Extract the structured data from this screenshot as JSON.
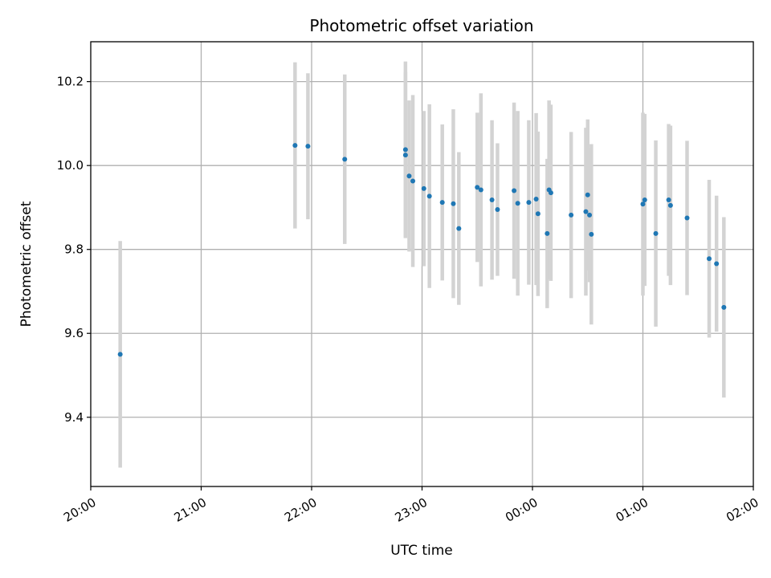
{
  "chart_data": {
    "type": "scatter",
    "title": "Photometric offset variation",
    "xlabel": "UTC time",
    "ylabel": "Photometric offset",
    "xlim": [
      "2000-01-01T20:00",
      "2000-01-02T02:00"
    ],
    "ylim": [
      9.235,
      10.295
    ],
    "x_ticks": [
      {
        "t": "2000-01-01T20:00",
        "label": "20:00"
      },
      {
        "t": "2000-01-01T21:00",
        "label": "21:00"
      },
      {
        "t": "2000-01-01T22:00",
        "label": "22:00"
      },
      {
        "t": "2000-01-01T23:00",
        "label": "23:00"
      },
      {
        "t": "2000-01-02T00:00",
        "label": "00:00"
      },
      {
        "t": "2000-01-02T01:00",
        "label": "01:00"
      },
      {
        "t": "2000-01-02T02:00",
        "label": "02:00"
      }
    ],
    "y_ticks": [
      {
        "value": 9.4,
        "label": "9.4"
      },
      {
        "value": 9.6,
        "label": "9.6"
      },
      {
        "value": 9.8,
        "label": "9.8"
      },
      {
        "value": 10.0,
        "label": "10.0"
      },
      {
        "value": 10.2,
        "label": "10.2"
      }
    ],
    "grid": true,
    "point_color": "#1f77b4",
    "errorbar_color": "#d3d3d3",
    "points": [
      {
        "t": "2000-01-01T20:16",
        "y": 9.55,
        "err": 0.27
      },
      {
        "t": "2000-01-01T21:51",
        "y": 10.048,
        "err": 0.198
      },
      {
        "t": "2000-01-01T21:58",
        "y": 10.046,
        "err": 0.174
      },
      {
        "t": "2000-01-01T22:18",
        "y": 10.015,
        "err": 0.202
      },
      {
        "t": "2000-01-01T22:51",
        "y": 10.038,
        "err": 0.21
      },
      {
        "t": "2000-01-01T22:51",
        "y": 10.025,
        "err": 0.198
      },
      {
        "t": "2000-01-01T22:53",
        "y": 9.975,
        "err": 0.18
      },
      {
        "t": "2000-01-01T22:55",
        "y": 9.963,
        "err": 0.205
      },
      {
        "t": "2000-01-01T23:01",
        "y": 9.945,
        "err": 0.185
      },
      {
        "t": "2000-01-01T23:04",
        "y": 9.927,
        "err": 0.219
      },
      {
        "t": "2000-01-01T23:11",
        "y": 9.912,
        "err": 0.186
      },
      {
        "t": "2000-01-01T23:17",
        "y": 9.909,
        "err": 0.225
      },
      {
        "t": "2000-01-01T23:20",
        "y": 9.85,
        "err": 0.182
      },
      {
        "t": "2000-01-01T23:30",
        "y": 9.948,
        "err": 0.178
      },
      {
        "t": "2000-01-01T23:32",
        "y": 9.942,
        "err": 0.23
      },
      {
        "t": "2000-01-01T23:38",
        "y": 9.918,
        "err": 0.19
      },
      {
        "t": "2000-01-01T23:41",
        "y": 9.895,
        "err": 0.158
      },
      {
        "t": "2000-01-01T23:50",
        "y": 9.94,
        "err": 0.21
      },
      {
        "t": "2000-01-01T23:52",
        "y": 9.91,
        "err": 0.22
      },
      {
        "t": "2000-01-01T23:58",
        "y": 9.912,
        "err": 0.196
      },
      {
        "t": "2000-01-02T00:02",
        "y": 9.92,
        "err": 0.205
      },
      {
        "t": "2000-01-02T00:03",
        "y": 9.885,
        "err": 0.196
      },
      {
        "t": "2000-01-02T00:08",
        "y": 9.838,
        "err": 0.178
      },
      {
        "t": "2000-01-02T00:09",
        "y": 9.942,
        "err": 0.213
      },
      {
        "t": "2000-01-02T00:10",
        "y": 9.935,
        "err": 0.21
      },
      {
        "t": "2000-01-02T00:21",
        "y": 9.882,
        "err": 0.198
      },
      {
        "t": "2000-01-02T00:29",
        "y": 9.89,
        "err": 0.2
      },
      {
        "t": "2000-01-02T00:30",
        "y": 9.93,
        "err": 0.18
      },
      {
        "t": "2000-01-02T00:31",
        "y": 9.882,
        "err": 0.16
      },
      {
        "t": "2000-01-02T00:32",
        "y": 9.836,
        "err": 0.215
      },
      {
        "t": "2000-01-02T01:00",
        "y": 9.908,
        "err": 0.218
      },
      {
        "t": "2000-01-02T01:01",
        "y": 9.918,
        "err": 0.205
      },
      {
        "t": "2000-01-02T01:07",
        "y": 9.838,
        "err": 0.222
      },
      {
        "t": "2000-01-02T01:14",
        "y": 9.918,
        "err": 0.181
      },
      {
        "t": "2000-01-02T01:15",
        "y": 9.905,
        "err": 0.19
      },
      {
        "t": "2000-01-02T01:24",
        "y": 9.875,
        "err": 0.184
      },
      {
        "t": "2000-01-02T01:36",
        "y": 9.778,
        "err": 0.188
      },
      {
        "t": "2000-01-02T01:40",
        "y": 9.766,
        "err": 0.162
      },
      {
        "t": "2000-01-02T01:44",
        "y": 9.662,
        "err": 0.215
      }
    ]
  }
}
